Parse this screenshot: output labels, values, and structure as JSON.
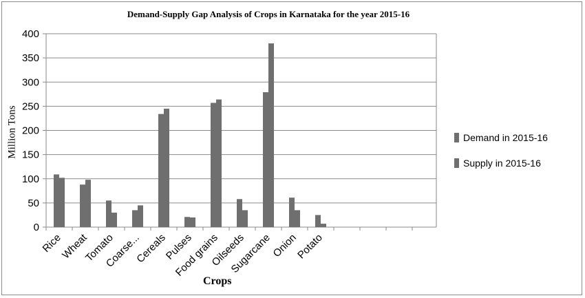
{
  "chart_data": {
    "type": "bar",
    "title": "Demand-Supply Gap Analysis of Crops in Karnataka for the year 2015-16",
    "xlabel": "Crops",
    "ylabel": "Million Tons",
    "ylim": [
      0,
      400
    ],
    "yticks": [
      0,
      50,
      100,
      150,
      200,
      250,
      300,
      350,
      400
    ],
    "categories": [
      "Rice",
      "Wheat",
      "Tomato",
      "Coarse...",
      "Cereals",
      "Pulses",
      "Food grains",
      "Oilseeds",
      "Sugarcane",
      "Onion",
      "Potato"
    ],
    "series": [
      {
        "name": "Demand in 2015-16",
        "color": "#6f6f6f",
        "values": [
          109,
          88,
          55,
          35,
          234,
          21,
          257,
          58,
          279,
          61,
          25
        ]
      },
      {
        "name": "Supply in 2015-16",
        "color": "#6f6f6f",
        "values": [
          102,
          98,
          30,
          45,
          245,
          20,
          264,
          35,
          380,
          35,
          7
        ]
      }
    ],
    "grid": true,
    "legend_position": "right"
  }
}
